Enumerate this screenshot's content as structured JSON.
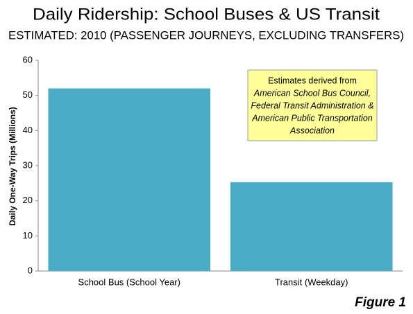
{
  "chart_data": {
    "type": "bar",
    "title": "Daily Ridership: School Buses & US Transit",
    "subtitle": "ESTIMATED: 2010 (PASSENGER JOURNEYS, EXCLUDING TRANSFERS)",
    "y_label": "Daily One-Way Trips (Millions)",
    "categories": [
      "School Bus (School Year)",
      "Transit (Weekday)"
    ],
    "values": [
      52,
      25.3
    ],
    "color": "#4bacc6",
    "ylim": [
      0,
      60
    ],
    "yticks": [
      0,
      10,
      20,
      30,
      40,
      50,
      60
    ],
    "grid": false,
    "annotation": [
      "Estimates derived from",
      "American School Bus Council,",
      "Federal Transit Administration &",
      "American Public Transportation",
      "Association"
    ],
    "figure_label": "Figure 1"
  }
}
